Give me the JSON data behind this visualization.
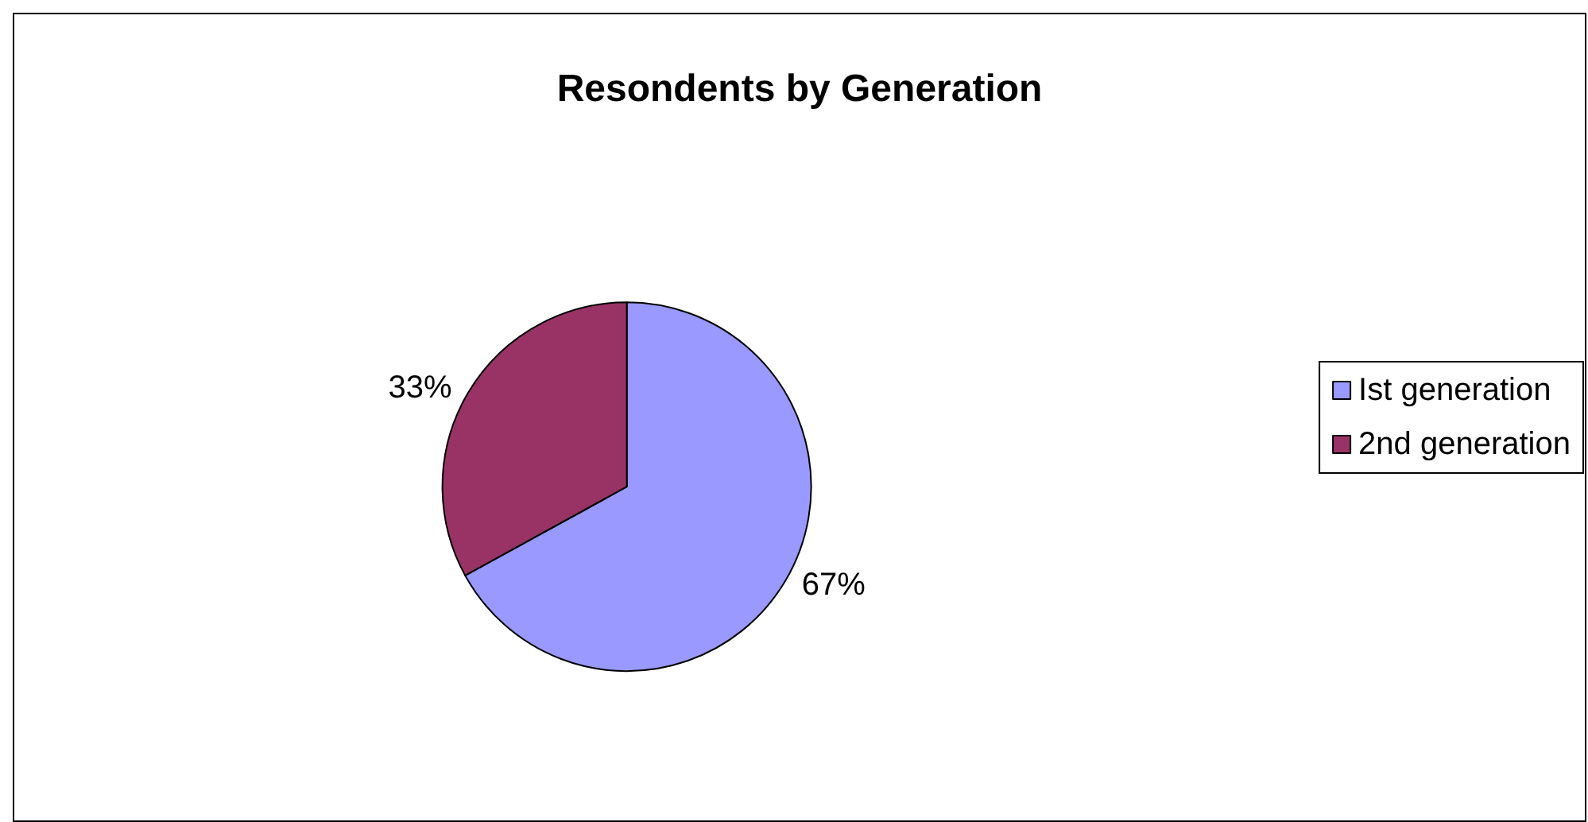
{
  "chart_data": {
    "type": "pie",
    "title": "Resondents by Generation",
    "categories": [
      "Ist generation",
      "2nd generation"
    ],
    "values": [
      67,
      33
    ],
    "colors": [
      "#9999ff",
      "#993366"
    ],
    "value_labels": [
      "67%",
      "33%"
    ],
    "legend": "right"
  }
}
